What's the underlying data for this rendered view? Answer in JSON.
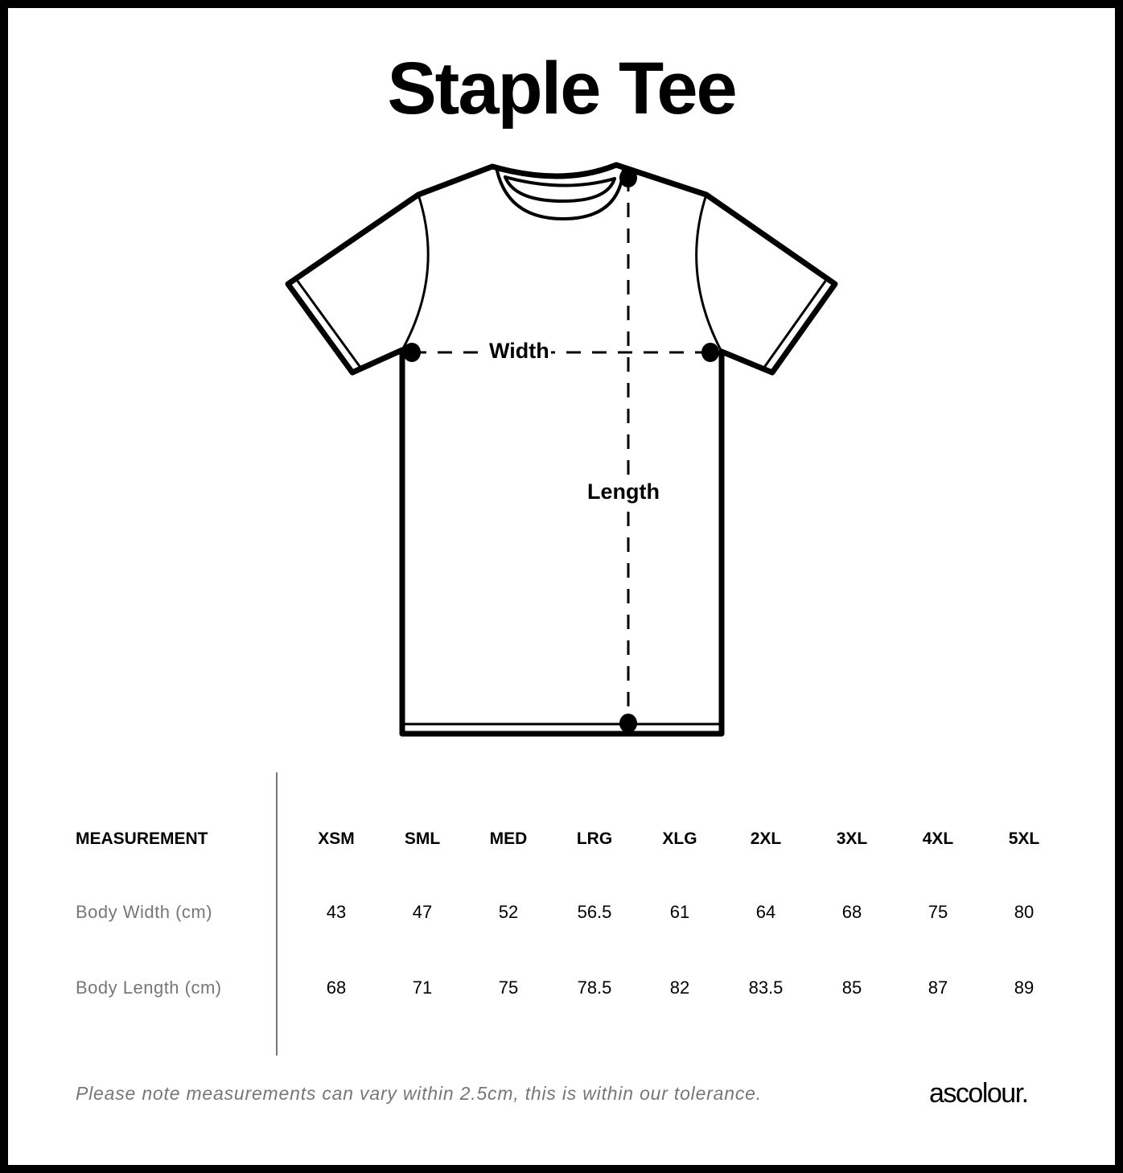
{
  "title": "Staple Tee",
  "diagram": {
    "width_label": "Width",
    "length_label": "Length"
  },
  "table": {
    "header_label": "MEASUREMENT",
    "sizes": [
      "XSM",
      "SML",
      "MED",
      "LRG",
      "XLG",
      "2XL",
      "3XL",
      "4XL",
      "5XL"
    ],
    "rows": [
      {
        "label": "Body Width (cm)",
        "values": [
          "43",
          "47",
          "52",
          "56.5",
          "61",
          "64",
          "68",
          "75",
          "80"
        ]
      },
      {
        "label": "Body Length (cm)",
        "values": [
          "68",
          "71",
          "75",
          "78.5",
          "82",
          "83.5",
          "85",
          "87",
          "89"
        ]
      }
    ]
  },
  "note": "Please note measurements can vary within 2.5cm, this is within our tolerance.",
  "brand": "ascolour."
}
